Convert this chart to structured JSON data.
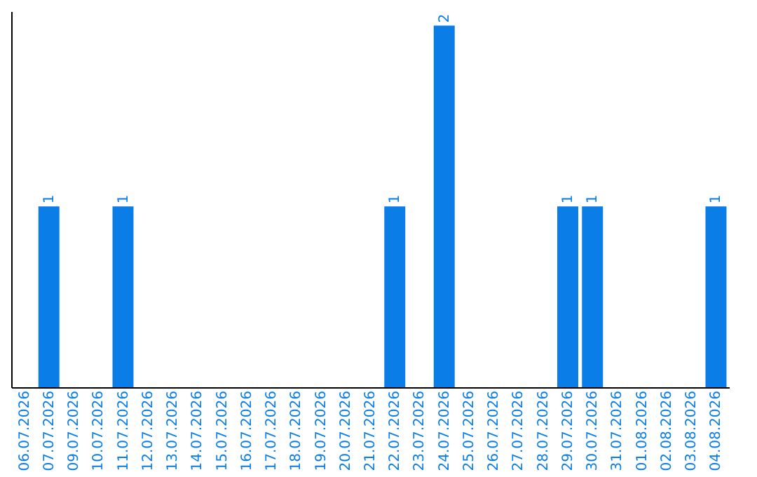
{
  "chart_data": {
    "type": "bar",
    "categories": [
      "06.07.2026",
      "07.07.2026",
      "09.07.2026",
      "10.07.2026",
      "11.07.2026",
      "12.07.2026",
      "13.07.2026",
      "14.07.2026",
      "15.07.2026",
      "16.07.2026",
      "17.07.2026",
      "18.07.2026",
      "19.07.2026",
      "20.07.2026",
      "21.07.2026",
      "22.07.2026",
      "23.07.2026",
      "24.07.2026",
      "25.07.2026",
      "26.07.2026",
      "27.07.2026",
      "28.07.2026",
      "29.07.2026",
      "30.07.2026",
      "31.07.2026",
      "01.08.2026",
      "02.08.2026",
      "03.08.2026",
      "04.08.2026"
    ],
    "values": [
      0,
      1,
      0,
      0,
      1,
      0,
      0,
      0,
      0,
      0,
      0,
      0,
      0,
      0,
      0,
      1,
      0,
      2,
      0,
      0,
      0,
      0,
      1,
      1,
      0,
      0,
      0,
      0,
      1
    ],
    "value_labels": [
      null,
      "1",
      null,
      null,
      "1",
      null,
      null,
      null,
      null,
      null,
      null,
      null,
      null,
      null,
      null,
      "1",
      null,
      "2",
      null,
      null,
      null,
      null,
      "1",
      "1",
      null,
      null,
      null,
      null,
      "1"
    ],
    "color": "#0a7de6",
    "ylim": [
      0,
      2.08
    ],
    "tick_labels": "x",
    "grid": false
  }
}
